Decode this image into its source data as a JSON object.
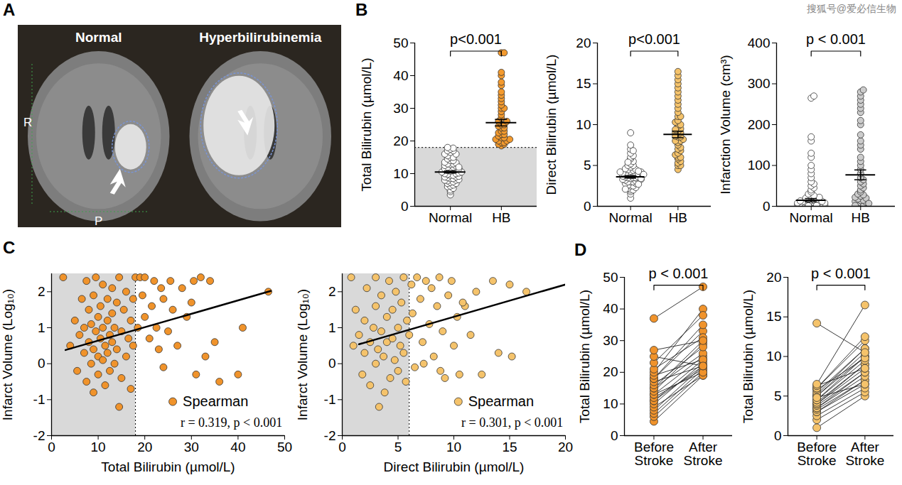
{
  "watermark": "搜狐号@爱必信生物",
  "chart_data": [
    {
      "type": "image",
      "panel": "A",
      "images": [
        {
          "title": "Normal"
        },
        {
          "title": "Hyperbilirubinemia"
        }
      ],
      "annotations": [
        "R",
        "P"
      ]
    },
    {
      "type": "strip",
      "panel": "B",
      "y_label": "Total Bilirubin (µmol/L)",
      "categories": [
        "Normal",
        "HB"
      ],
      "values": [
        [
          3.5,
          4.5,
          5,
          5.5,
          6,
          6.2,
          6.5,
          7,
          7,
          7.3,
          7.5,
          7.8,
          8,
          8,
          8.2,
          8.5,
          8.5,
          8.8,
          9,
          9,
          9.2,
          9.5,
          9.5,
          9.8,
          10,
          10,
          10.2,
          10.5,
          10.5,
          10.8,
          11,
          11,
          11.2,
          11.5,
          11.5,
          11.8,
          12,
          12,
          12.3,
          12.5,
          12.8,
          13,
          13,
          13.3,
          13.5,
          14,
          14,
          14.5,
          15,
          15,
          15.5,
          16,
          16,
          16.5,
          17,
          17,
          17.5,
          17.8,
          18,
          12
        ],
        [
          18.5,
          19,
          19,
          19.5,
          19.5,
          20,
          20,
          20.5,
          20.5,
          21,
          21,
          21.5,
          22,
          22,
          22.5,
          23,
          23,
          24,
          24,
          24.5,
          25,
          25,
          26,
          26,
          27,
          28,
          29,
          30,
          30,
          31,
          32,
          33,
          34,
          35,
          37,
          38,
          40,
          41,
          47,
          47
        ]
      ],
      "colors": [
        "#ffffff",
        "#f39a2e"
      ],
      "mean": [
        10.5,
        25.6
      ],
      "sem": [
        0.3,
        1.0
      ],
      "threshold": 18,
      "ylim": [
        0,
        50
      ],
      "yticks": [
        0,
        10,
        20,
        30,
        40,
        50
      ],
      "annotations": [
        "p<0.001"
      ]
    },
    {
      "type": "strip",
      "y_label": "Direct Bilirubin (µmol/L)",
      "categories": [
        "Normal",
        "HB"
      ],
      "values": [
        [
          1,
          1.5,
          1.8,
          2,
          2,
          2.2,
          2.3,
          2.5,
          2.5,
          2.6,
          2.8,
          2.8,
          3,
          3,
          3,
          3.1,
          3.2,
          3.2,
          3.3,
          3.3,
          3.4,
          3.5,
          3.5,
          3.5,
          3.6,
          3.6,
          3.7,
          3.8,
          3.8,
          3.9,
          4,
          4,
          4,
          4.1,
          4.2,
          4.2,
          4.3,
          4.4,
          4.5,
          4.5,
          4.6,
          4.8,
          5,
          5,
          5.2,
          5.5,
          5.8,
          6,
          6.2,
          6.5,
          7,
          7.5,
          9,
          2.7,
          3.4,
          3.9,
          4.3,
          2.1,
          5.4,
          6.8
        ],
        [
          4.5,
          5,
          5,
          5.3,
          5.5,
          5.8,
          6,
          6,
          6.3,
          6.5,
          6.8,
          7,
          7.2,
          7.5,
          7.8,
          8,
          8,
          8.2,
          8.5,
          8.5,
          8.8,
          9,
          9,
          9.2,
          9.5,
          9.8,
          10,
          10,
          10.3,
          10.5,
          11,
          11,
          11.5,
          12,
          12.5,
          13,
          13.5,
          14,
          14.5,
          15,
          15.5,
          16,
          16.5,
          8.6,
          9.4
        ]
      ],
      "colors": [
        "#ffffff",
        "#f5c36b"
      ],
      "mean": [
        3.6,
        8.8
      ],
      "sem": [
        0.15,
        0.4
      ],
      "ylim": [
        0,
        20
      ],
      "yticks": [
        0,
        5,
        10,
        15,
        20
      ],
      "annotations": [
        "p<0.001"
      ]
    },
    {
      "type": "strip",
      "y_label": "Infarction Volume (cm³)",
      "categories": [
        "Normal",
        "HB"
      ],
      "values": [
        [
          0.5,
          1,
          1,
          1.5,
          2,
          2,
          2.5,
          3,
          3,
          3,
          3.5,
          4,
          4,
          4.5,
          5,
          5,
          5,
          6,
          6,
          6.5,
          7,
          7,
          8,
          8,
          8.5,
          9,
          9,
          10,
          10,
          11,
          12,
          12,
          13,
          14,
          15,
          16,
          18,
          20,
          22,
          24,
          26,
          30,
          35,
          40,
          45,
          50,
          55,
          60,
          70,
          80,
          90,
          100,
          120,
          130,
          160,
          170,
          265,
          270,
          1,
          2
        ],
        [
          1,
          2,
          3,
          4,
          5,
          6,
          8,
          10,
          12,
          14,
          15,
          18,
          20,
          22,
          25,
          28,
          30,
          35,
          40,
          45,
          50,
          55,
          60,
          65,
          70,
          80,
          90,
          100,
          110,
          120,
          140,
          150,
          160,
          175,
          200,
          210,
          230,
          240,
          250,
          260,
          270,
          280,
          285,
          2,
          7
        ]
      ],
      "colors": [
        "#ffffff",
        "#cccccc"
      ],
      "mean": [
        15,
        77
      ],
      "sem": [
        4,
        12
      ],
      "ylim": [
        0,
        400
      ],
      "yticks": [
        0,
        100,
        200,
        300,
        400
      ],
      "annotations": [
        "p < 0.001"
      ]
    },
    {
      "type": "scatter",
      "panel": "C",
      "x_label": "Total Bilirubin (µmol/L)",
      "y_label": "Infarct Volume (Log₁₀)",
      "x": [
        2.5,
        4,
        5,
        5.5,
        6,
        6.5,
        7,
        7,
        7.5,
        7.5,
        8,
        8,
        8.5,
        8.5,
        9,
        9,
        9,
        9.5,
        9.5,
        10,
        10,
        10,
        10.5,
        10.5,
        11,
        11,
        11,
        11.5,
        11.5,
        12,
        12,
        12,
        12.5,
        12.5,
        13,
        13,
        13,
        13.5,
        13.5,
        14,
        14,
        14.5,
        14.5,
        15,
        15,
        15.5,
        16,
        16,
        16.5,
        17,
        17,
        17.5,
        17.5,
        18,
        18.5,
        19,
        19.5,
        20,
        20,
        21,
        21.5,
        22,
        22.5,
        23,
        23.5,
        24,
        25,
        25.5,
        26,
        27,
        28,
        29,
        30,
        31,
        32,
        33,
        34,
        35,
        36,
        40,
        46.5,
        41,
        24,
        30.5
      ],
      "y": [
        2.4,
        0.5,
        1.2,
        -0.2,
        0.8,
        1.8,
        0.3,
        1.0,
        -0.5,
        2.3,
        0.6,
        1.5,
        0.0,
        1.1,
        0.4,
        1.9,
        -0.8,
        0.9,
        2.4,
        0.2,
        1.3,
        -0.3,
        0.7,
        1.6,
        0.1,
        1.0,
        2.2,
        0.5,
        -0.6,
        1.2,
        0.3,
        1.8,
        0.8,
        -0.2,
        1.4,
        0.6,
        2.1,
        0.0,
        1.0,
        1.7,
        0.4,
        -1.2,
        2.4,
        0.9,
        -0.4,
        1.5,
        0.2,
        2.0,
        0.7,
        1.2,
        -0.7,
        1.8,
        0.5,
        2.4,
        1.0,
        2.4,
        1.9,
        1.3,
        2.4,
        0.7,
        1.6,
        2.3,
        1.0,
        0.4,
        2.1,
        1.8,
        0.9,
        2.3,
        1.5,
        0.5,
        2.1,
        1.3,
        1.7,
        -0.3,
        2.4,
        0.2,
        2.3,
        0.6,
        -0.5,
        -0.3,
        2.0,
        1.0,
        -0.1,
        2.3
      ],
      "color": "#f0932b",
      "name": "Spearman",
      "legend": "bottom-right",
      "annotations": [
        "r = 0.319, p < 0.001"
      ],
      "threshold": 18,
      "fit": {
        "x": [
          3,
          47
        ],
        "y": [
          0.38,
          2.02
        ]
      },
      "xlim": [
        0,
        50
      ],
      "xticks": [
        0,
        10,
        20,
        30,
        40,
        50
      ],
      "ylim": [
        -2,
        2.5
      ],
      "yticks": [
        -2,
        -1,
        0,
        1,
        2
      ]
    },
    {
      "type": "scatter",
      "x_label": "Direct Bilirubin (µmol/L)",
      "y_label": "Infarct Volume (Log₁₀)",
      "x": [
        0.8,
        1,
        1.2,
        1.5,
        1.8,
        2,
        2,
        2.2,
        2.5,
        2.5,
        2.8,
        3,
        3,
        3,
        3.2,
        3.3,
        3.5,
        3.5,
        3.7,
        3.8,
        4,
        4,
        4.2,
        4.3,
        4.5,
        4.5,
        4.7,
        4.8,
        5,
        5,
        5.2,
        5.3,
        5.5,
        5.5,
        5.7,
        5.8,
        6,
        6.2,
        6.3,
        6.5,
        6.7,
        7,
        7.2,
        7.5,
        7.8,
        8,
        8.2,
        8.5,
        8.7,
        9,
        9.2,
        9.5,
        9.8,
        10,
        10.3,
        10.5,
        11,
        11.5,
        12,
        12.5,
        13.5,
        14,
        15,
        15.2,
        16.5,
        8.8,
        10.8,
        7.3
      ],
      "y": [
        2.4,
        0.5,
        1.5,
        0.8,
        -0.3,
        1.2,
        0.3,
        2.1,
        0.6,
        -0.6,
        1.0,
        0.0,
        1.6,
        2.4,
        0.4,
        -1.2,
        0.9,
        1.9,
        0.2,
        -0.8,
        1.3,
        0.6,
        2.3,
        -0.4,
        0.7,
        1.5,
        0.1,
        2.0,
        1.0,
        -0.2,
        0.5,
        1.7,
        2.4,
        0.3,
        -0.5,
        1.2,
        0.8,
        2.2,
        1.4,
        -0.1,
        2.4,
        1.8,
        0.6,
        2.3,
        1.1,
        2.1,
        0.2,
        1.6,
        2.4,
        0.9,
        -0.4,
        1.9,
        2.3,
        0.5,
        1.3,
        -0.3,
        1.6,
        0.8,
        2.0,
        -0.3,
        2.3,
        0.3,
        2.2,
        0.2,
        2.0,
        -0.2,
        1.7,
        0.0
      ],
      "color": "#f5c36b",
      "name": "Spearman",
      "legend": "bottom-right",
      "annotations": [
        "r = 0.301, p < 0.001"
      ],
      "threshold": 6,
      "fit": {
        "x": [
          1.5,
          20
        ],
        "y": [
          0.54,
          2.2
        ]
      },
      "xlim": [
        0,
        20
      ],
      "xticks": [
        0,
        5,
        10,
        15,
        20
      ],
      "ylim": [
        -2,
        2.5
      ],
      "yticks": [
        -2,
        -1,
        0,
        1,
        2
      ]
    },
    {
      "type": "paired",
      "panel": "D",
      "y_label": "Total Bilirubin (µmol/L)",
      "categories": [
        "Before Stroke",
        "After Stroke"
      ],
      "values": [
        [
          4.5,
          6,
          7,
          8,
          9,
          10,
          11,
          11,
          12,
          13,
          13,
          14,
          15,
          15,
          16,
          17,
          18,
          18,
          19,
          20,
          21,
          23,
          25,
          27,
          37
        ],
        [
          19,
          20,
          21,
          22,
          19,
          23,
          22,
          24,
          21,
          25,
          20,
          29,
          30,
          26,
          28,
          22,
          33,
          35,
          24,
          40,
          31,
          38,
          22,
          30,
          47
        ]
      ],
      "color": "#f0932b",
      "ylim": [
        0,
        50
      ],
      "yticks": [
        0,
        10,
        20,
        30,
        40,
        50
      ],
      "annotations": [
        "p < 0.001"
      ]
    },
    {
      "type": "paired",
      "y_label": "Total Bilirubin (µmol/L)",
      "categories": [
        "Before Stroke",
        "After Stroke"
      ],
      "values": [
        [
          1,
          2,
          2.5,
          3,
          3,
          3.3,
          3.5,
          3.5,
          3.8,
          4,
          4,
          4.2,
          4.5,
          4.5,
          5,
          5,
          5.2,
          5.5,
          5.8,
          6,
          6,
          6.3,
          6.5,
          4.8,
          14.2
        ],
        [
          5,
          5.5,
          6,
          6.5,
          7,
          7,
          7.5,
          8,
          8,
          8.5,
          9,
          9,
          9.5,
          10,
          10,
          10.5,
          11,
          11,
          9.8,
          12,
          12.5,
          8.5,
          16.5,
          6.5,
          10.5
        ]
      ],
      "color": "#f5c36b",
      "ylim": [
        0,
        20
      ],
      "yticks": [
        0,
        5,
        10,
        15,
        20
      ],
      "annotations": [
        "p < 0.001"
      ]
    }
  ]
}
